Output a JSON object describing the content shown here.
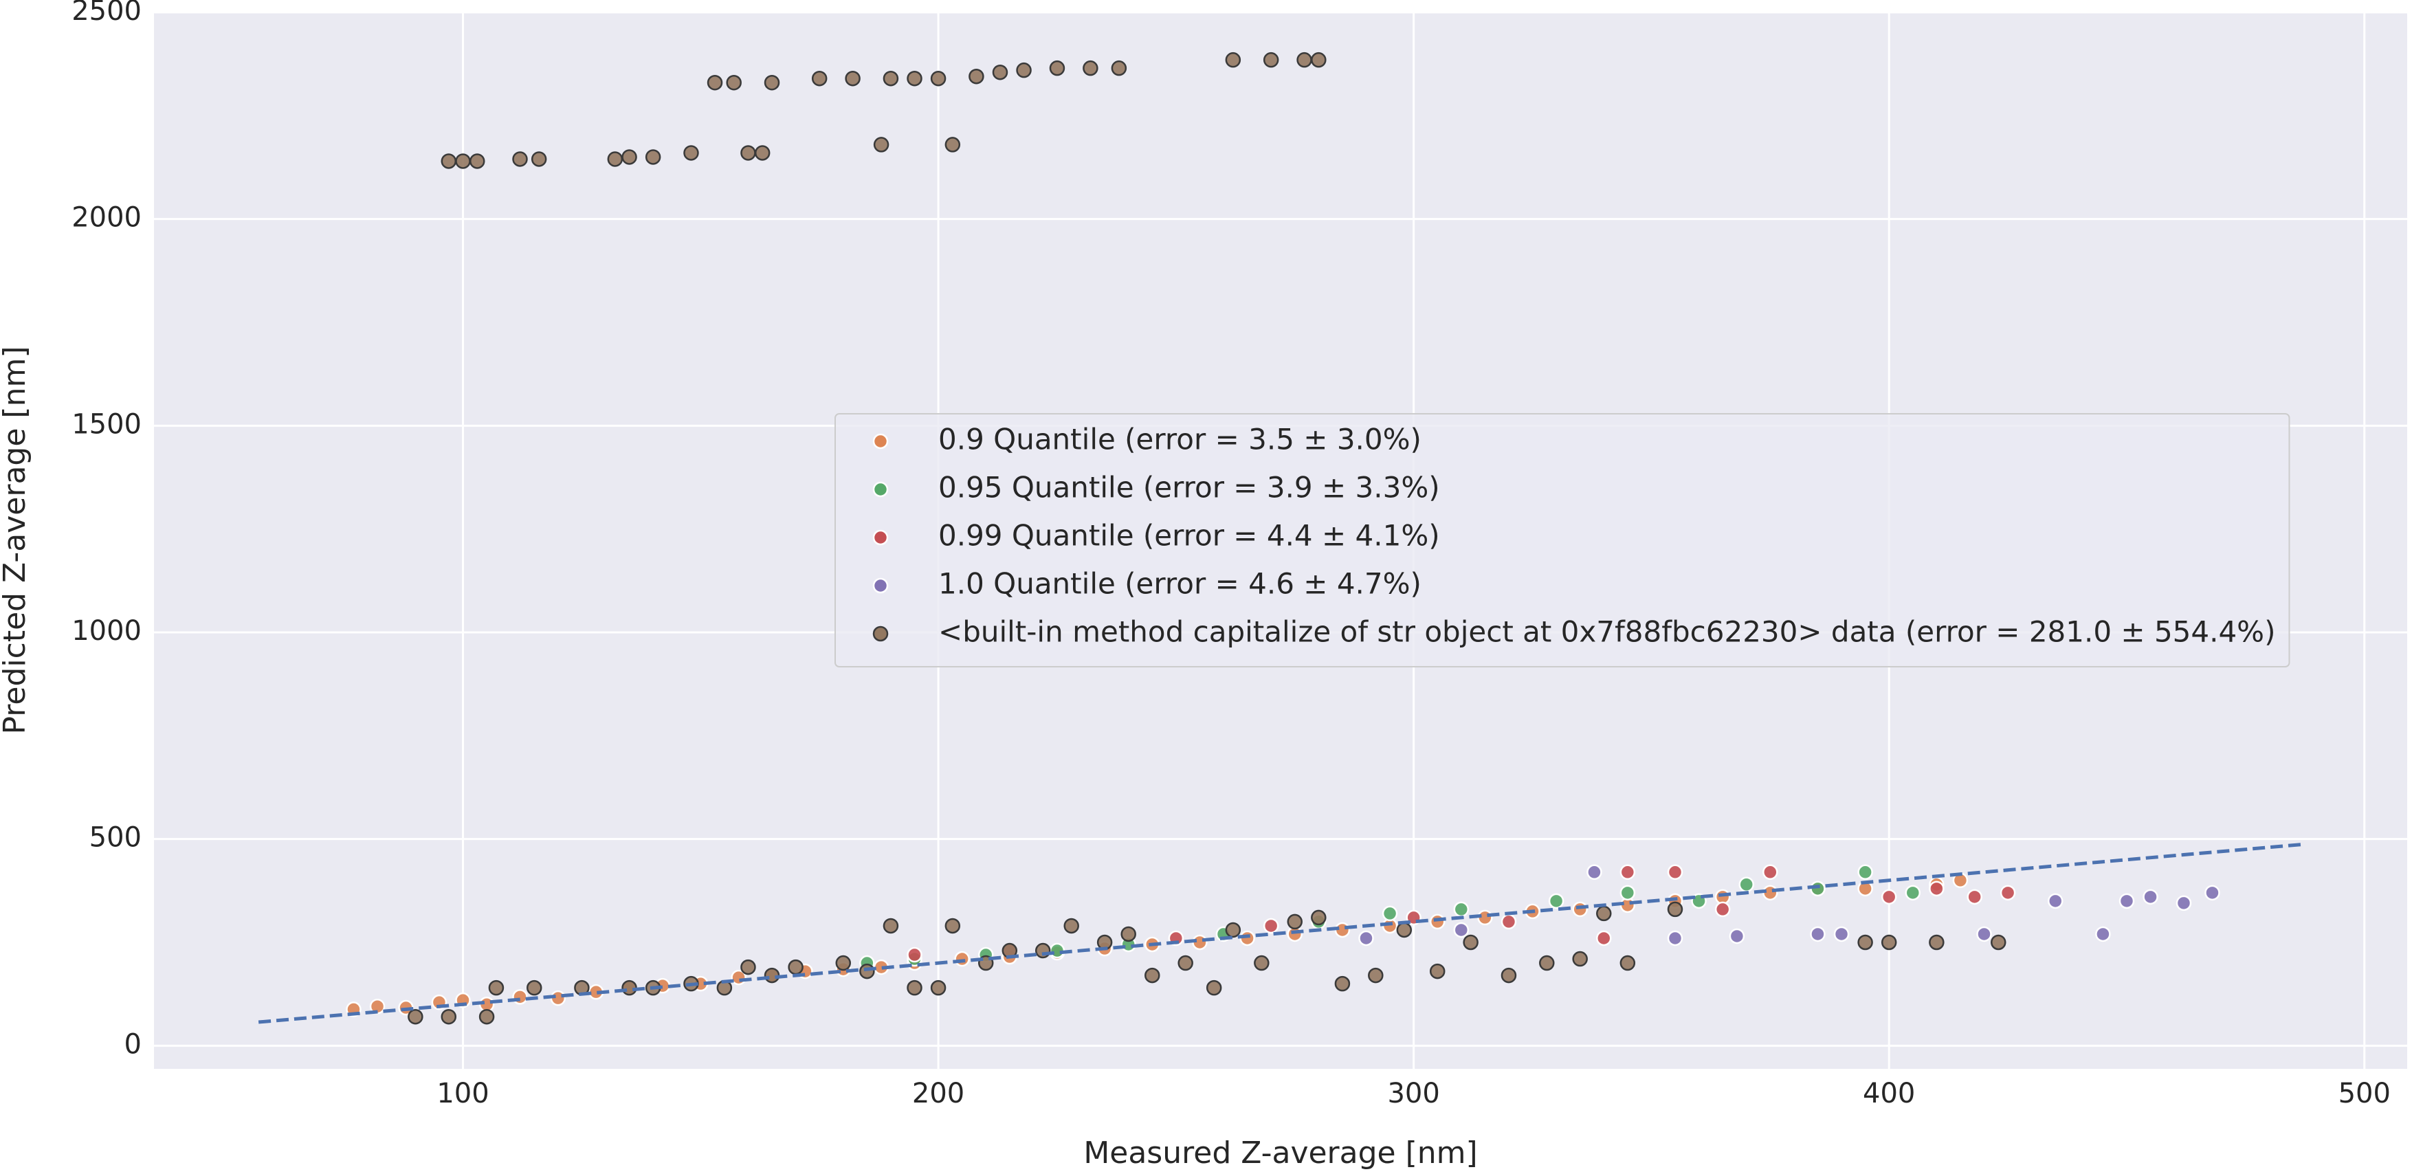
{
  "chart_data": {
    "type": "scatter",
    "xlabel": "Measured Z-average [nm]",
    "ylabel": "Predicted Z-average [nm]",
    "xlim": [
      35,
      509
    ],
    "ylim": [
      -56,
      2500
    ],
    "xticks": [
      100,
      200,
      300,
      400,
      500
    ],
    "yticks": [
      0,
      500,
      1000,
      1500,
      2000,
      2500
    ],
    "grid": true,
    "legend_loc": "center right",
    "reference_line": {
      "x": [
        57,
        487
      ],
      "values": [
        57,
        487
      ],
      "color": "#4c72b0"
    },
    "series": [
      {
        "name": "0.9 Quantile (error = 3.5 ± 3.0%)",
        "color": "#dd8452",
        "edgecolor": "#ffffff",
        "x": [
          77,
          82,
          88,
          95,
          100,
          105,
          112,
          120,
          128,
          135,
          142,
          150,
          158,
          165,
          172,
          180,
          188,
          195,
          205,
          215,
          225,
          235,
          245,
          255,
          265,
          275,
          285,
          295,
          305,
          315,
          325,
          335,
          345,
          355,
          365,
          375,
          385,
          395,
          410,
          415
        ],
        "values": [
          88,
          95,
          92,
          105,
          110,
          100,
          118,
          115,
          130,
          140,
          145,
          150,
          165,
          170,
          180,
          185,
          190,
          200,
          210,
          215,
          225,
          235,
          245,
          250,
          260,
          270,
          280,
          290,
          300,
          310,
          325,
          330,
          340,
          350,
          360,
          370,
          380,
          380,
          390,
          400
        ]
      },
      {
        "name": "0.95 Quantile (error = 3.9 ± 3.3%)",
        "color": "#55a868",
        "edgecolor": "#ffffff",
        "x": [
          185,
          195,
          210,
          225,
          240,
          260,
          280,
          295,
          310,
          330,
          345,
          360,
          370,
          385,
          395,
          405
        ],
        "values": [
          200,
          210,
          220,
          230,
          245,
          270,
          300,
          320,
          330,
          350,
          370,
          350,
          390,
          380,
          420,
          370
        ]
      },
      {
        "name": "0.99 Quantile (error = 4.4 ± 4.1%)",
        "color": "#c44e52",
        "edgecolor": "#ffffff",
        "x": [
          195,
          215,
          250,
          270,
          300,
          320,
          340,
          345,
          355,
          365,
          375,
          400,
          410,
          418,
          425
        ],
        "values": [
          220,
          230,
          260,
          290,
          310,
          300,
          260,
          420,
          420,
          330,
          420,
          360,
          380,
          360,
          370
        ]
      },
      {
        "name": "1.0 Quantile (error = 4.6 ± 4.7%)",
        "color": "#8172b3",
        "edgecolor": "#ffffff",
        "x": [
          290,
          310,
          338,
          355,
          368,
          385,
          390,
          420,
          435,
          445,
          450,
          455,
          462,
          468
        ],
        "values": [
          260,
          280,
          420,
          260,
          265,
          270,
          270,
          270,
          350,
          270,
          350,
          360,
          345,
          370
        ]
      },
      {
        "name": "<built-in method capitalize of str object at 0x7f88fbc62230> data (error = 281.0 ± 554.4%)",
        "color": "#937860",
        "edgecolor": "#3a3a3a",
        "x": [
          97,
          100,
          103,
          112,
          116,
          132,
          135,
          140,
          148,
          153,
          157,
          160,
          163,
          165,
          175,
          182,
          188,
          190,
          195,
          200,
          203,
          208,
          213,
          218,
          225,
          232,
          238,
          262,
          270,
          277,
          280,
          90,
          97,
          105,
          107,
          115,
          125,
          135,
          140,
          148,
          155,
          160,
          165,
          170,
          180,
          185,
          190,
          195,
          200,
          203,
          210,
          215,
          222,
          228,
          235,
          240,
          245,
          252,
          258,
          262,
          268,
          275,
          280,
          285,
          292,
          298,
          305,
          312,
          320,
          328,
          335,
          340,
          345,
          355,
          395,
          400,
          410,
          423
        ],
        "values": [
          2140,
          2140,
          2140,
          2145,
          2145,
          2145,
          2150,
          2150,
          2160,
          2330,
          2330,
          2160,
          2160,
          2330,
          2340,
          2340,
          2180,
          2340,
          2340,
          2340,
          2180,
          2345,
          2355,
          2360,
          2365,
          2365,
          2365,
          2385,
          2385,
          2385,
          2385,
          70,
          70,
          70,
          140,
          140,
          140,
          140,
          140,
          150,
          140,
          190,
          170,
          190,
          200,
          180,
          290,
          140,
          140,
          290,
          200,
          230,
          230,
          290,
          250,
          270,
          170,
          200,
          140,
          280,
          200,
          300,
          310,
          150,
          170,
          280,
          180,
          250,
          170,
          200,
          210,
          320,
          200,
          330,
          250,
          250,
          250,
          250
        ]
      }
    ]
  }
}
